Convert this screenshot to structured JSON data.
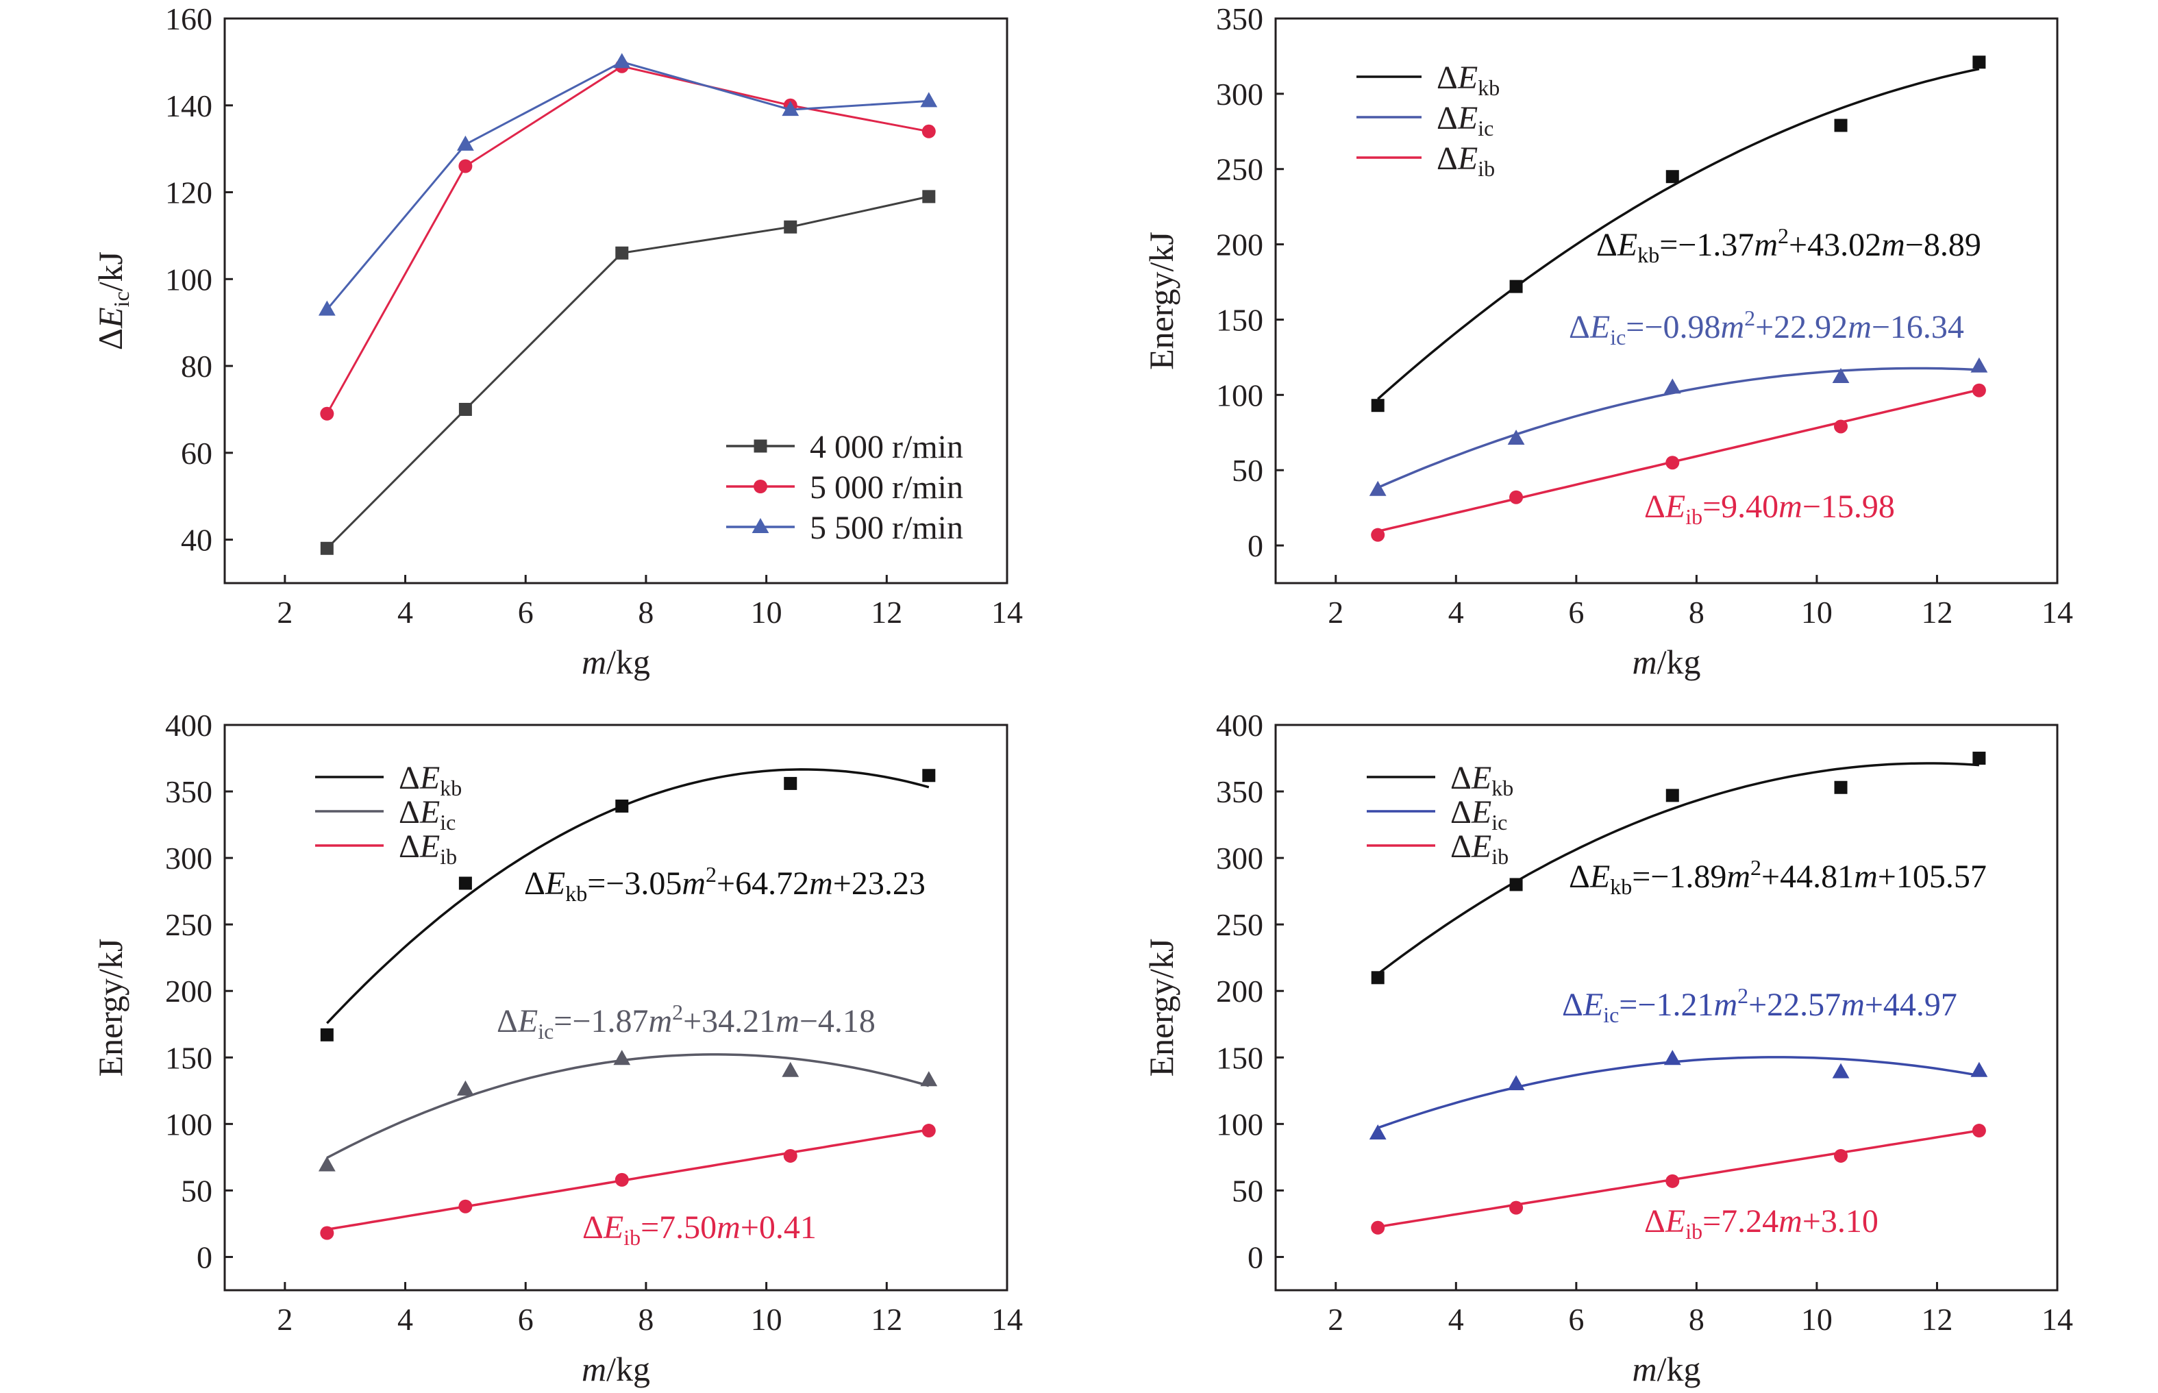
{
  "chart_data": [
    {
      "type": "line",
      "xlabel_italic": "m",
      "xlabel_rest": "/kg",
      "ylabel_delta": "ΔE",
      "ylabel_sub": "ic",
      "ylabel_rest": "/kJ",
      "xlim": [
        1,
        14
      ],
      "ylim": [
        30,
        160
      ],
      "xticks": [
        2,
        4,
        6,
        8,
        10,
        12,
        14
      ],
      "yticks": [
        40,
        60,
        80,
        100,
        120,
        140,
        160
      ],
      "legend_position": "bottom-right",
      "series": [
        {
          "name": "4 000 r/min",
          "color": "#404040",
          "marker": "square",
          "x": [
            2.7,
            5.0,
            7.6,
            10.4,
            12.7
          ],
          "y": [
            38,
            70,
            106,
            112,
            119
          ]
        },
        {
          "name": "5 000 r/min",
          "color": "#e0254a",
          "marker": "circle",
          "x": [
            2.7,
            5.0,
            7.6,
            10.4,
            12.7
          ],
          "y": [
            69,
            126,
            149,
            140,
            134
          ]
        },
        {
          "name": "5 500 r/min",
          "color": "#4a62b0",
          "marker": "triangle",
          "x": [
            2.7,
            5.0,
            7.6,
            10.4,
            12.7
          ],
          "y": [
            93,
            131,
            150,
            139,
            141
          ]
        }
      ]
    },
    {
      "type": "scatter",
      "xlabel_italic": "m",
      "xlabel_rest": "/kg",
      "ylabel": "Energy/kJ",
      "xlim": [
        1,
        14
      ],
      "ylim": [
        -25,
        350
      ],
      "xticks": [
        2,
        4,
        6,
        8,
        10,
        12,
        14
      ],
      "yticks": [
        0,
        50,
        100,
        150,
        200,
        250,
        300,
        350
      ],
      "legend_position": "top-left",
      "series": [
        {
          "delta": "ΔE",
          "sub": "kb",
          "color": "#111111",
          "marker": "square",
          "x": [
            2.7,
            5.0,
            7.6,
            10.4,
            12.7
          ],
          "y": [
            93,
            172,
            245,
            279,
            321
          ],
          "fit": [
            -1.37,
            43.02,
            -8.89
          ],
          "eq": {
            "pre": "ΔE",
            "sub": "kb",
            "parts": [
              "=−1.37",
              "m",
              "2",
              "+43.02",
              "m",
              "−8.89"
            ]
          }
        },
        {
          "delta": "ΔE",
          "sub": "ic",
          "color": "#4a5aa8",
          "marker": "triangle",
          "x": [
            2.7,
            5.0,
            7.6,
            10.4,
            12.7
          ],
          "y": [
            37,
            71,
            105,
            112,
            119
          ],
          "fit": [
            -0.98,
            22.92,
            -16.34
          ],
          "eq": {
            "pre": "ΔE",
            "sub": "ic",
            "parts": [
              "=−0.98",
              "m",
              "2",
              "+22.92",
              "m",
              "−16.34"
            ]
          }
        },
        {
          "delta": "ΔE",
          "sub": "ib",
          "color": "#e0254a",
          "marker": "circle",
          "x": [
            2.7,
            5.0,
            7.6,
            10.4,
            12.7
          ],
          "y": [
            7,
            32,
            55,
            79,
            103
          ],
          "fit": [
            0,
            9.4,
            -15.98
          ],
          "eq": {
            "pre": "ΔE",
            "sub": "ib",
            "parts": [
              "=9.40",
              "m",
              "",
              "−15.98",
              "",
              ""
            ]
          }
        }
      ]
    },
    {
      "type": "scatter",
      "xlabel_italic": "m",
      "xlabel_rest": "/kg",
      "ylabel": "Energy/kJ",
      "xlim": [
        1,
        14
      ],
      "ylim": [
        -25,
        400
      ],
      "xticks": [
        2,
        4,
        6,
        8,
        10,
        12,
        14
      ],
      "yticks": [
        0,
        50,
        100,
        150,
        200,
        250,
        300,
        350,
        400
      ],
      "legend_position": "top-left",
      "series": [
        {
          "delta": "ΔE",
          "sub": "kb",
          "color": "#111111",
          "marker": "square",
          "x": [
            2.7,
            5.0,
            7.6,
            10.4,
            12.7
          ],
          "y": [
            167,
            281,
            339,
            356,
            362
          ],
          "fit": [
            -3.05,
            64.72,
            23.23
          ],
          "eq": {
            "pre": "ΔE",
            "sub": "kb",
            "parts": [
              "=−3.05",
              "m",
              "2",
              "+64.72",
              "m",
              "+23.23"
            ]
          }
        },
        {
          "delta": "ΔE",
          "sub": "ic",
          "color": "#5a5a66",
          "marker": "triangle",
          "x": [
            2.7,
            5.0,
            7.6,
            10.4,
            12.7
          ],
          "y": [
            69,
            126,
            149,
            140,
            133
          ],
          "fit": [
            -1.87,
            34.21,
            -4.18
          ],
          "eq": {
            "pre": "ΔE",
            "sub": "ic",
            "parts": [
              "=−1.87",
              "m",
              "2",
              "+34.21",
              "m",
              "−4.18"
            ]
          }
        },
        {
          "delta": "ΔE",
          "sub": "ib",
          "color": "#e0254a",
          "marker": "circle",
          "x": [
            2.7,
            5.0,
            7.6,
            10.4,
            12.7
          ],
          "y": [
            18,
            38,
            58,
            76,
            95
          ],
          "fit": [
            0,
            7.5,
            0.41
          ],
          "eq": {
            "pre": "ΔE",
            "sub": "ib",
            "parts": [
              "=7.50",
              "m",
              "",
              "+0.41",
              "",
              ""
            ]
          }
        }
      ]
    },
    {
      "type": "scatter",
      "xlabel_italic": "m",
      "xlabel_rest": "/kg",
      "ylabel": "Energy/kJ",
      "xlim": [
        1,
        14
      ],
      "ylim": [
        -25,
        400
      ],
      "xticks": [
        2,
        4,
        6,
        8,
        10,
        12,
        14
      ],
      "yticks": [
        0,
        50,
        100,
        150,
        200,
        250,
        300,
        350,
        400
      ],
      "legend_position": "top-left",
      "series": [
        {
          "delta": "ΔE",
          "sub": "kb",
          "color": "#111111",
          "marker": "square",
          "x": [
            2.7,
            5.0,
            7.6,
            10.4,
            12.7
          ],
          "y": [
            210,
            280,
            347,
            353,
            375
          ],
          "fit": [
            -1.89,
            44.81,
            105.57
          ],
          "eq": {
            "pre": "ΔE",
            "sub": "kb",
            "parts": [
              "=−1.89",
              "m",
              "2",
              "+44.81",
              "m",
              "+105.57"
            ]
          }
        },
        {
          "delta": "ΔE",
          "sub": "ic",
          "color": "#3a4aa8",
          "marker": "triangle",
          "x": [
            2.7,
            5.0,
            7.6,
            10.4,
            12.7
          ],
          "y": [
            93,
            130,
            149,
            139,
            140
          ],
          "fit": [
            -1.21,
            22.57,
            44.97
          ],
          "eq": {
            "pre": "ΔE",
            "sub": "ic",
            "parts": [
              "=−1.21",
              "m",
              "2",
              "+22.57",
              "m",
              "+44.97"
            ]
          }
        },
        {
          "delta": "ΔE",
          "sub": "ib",
          "color": "#e0254a",
          "marker": "circle",
          "x": [
            2.7,
            5.0,
            7.6,
            10.4,
            12.7
          ],
          "y": [
            22,
            37,
            57,
            76,
            95
          ],
          "fit": [
            0,
            7.24,
            3.1
          ],
          "eq": {
            "pre": "ΔE",
            "sub": "ib",
            "parts": [
              "=7.24",
              "m",
              "",
              "+3.10",
              "",
              ""
            ]
          }
        }
      ]
    }
  ]
}
